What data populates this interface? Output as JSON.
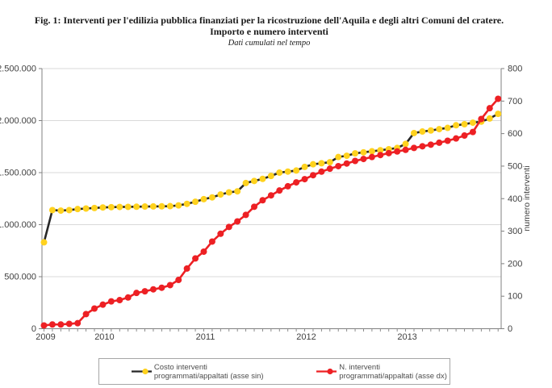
{
  "header": {
    "line1": "Fig. 1: Interventi per l'edilizia pubblica finanziati per la ricostruzione dell'Aquila e degli altri Comuni del cratere.",
    "line2": "Importo e numero interventi",
    "line3": "Dati cumulati nel tempo"
  },
  "colors": {
    "costo_marker": "#FFD21E",
    "costo_line": "#262626",
    "interventi": "#ED2024",
    "grid": "#D9D9D9",
    "axis": "#808080",
    "axis_text": "#404040"
  },
  "chart_data": {
    "type": "line",
    "title": "Fig. 1: Interventi per l'edilizia pubblica finanziati per la ricostruzione dell'Aquila e degli altri Comuni del cratere.",
    "subtitle": "Importo e numero interventi",
    "note": "Dati cumulati nel tempo",
    "grid": true,
    "legend_position": "bottom",
    "x_axis": {
      "n_points": 55,
      "unit": "monthly (mid-2009 to end-2013)",
      "year_labels": [
        {
          "label": "2009",
          "index": 0
        },
        {
          "label": "2010",
          "index": 7
        },
        {
          "label": "2011",
          "index": 19
        },
        {
          "label": "2012",
          "index": 31
        },
        {
          "label": "2013",
          "index": 43
        }
      ]
    },
    "left_axis": {
      "min": 0,
      "max": 2500000,
      "step": 500000,
      "tick_labels": [
        "0",
        "500.000",
        "1.000.000",
        "1.500.000",
        "2.000.000",
        "2.500.000"
      ]
    },
    "right_axis": {
      "min": 0,
      "max": 800,
      "step": 100,
      "title": "numero interventi",
      "tick_labels": [
        "0",
        "100",
        "200",
        "300",
        "400",
        "500",
        "600",
        "700",
        "800"
      ]
    },
    "series": [
      {
        "name": "Costo interventi programmati/appaltati (asse sin)",
        "axis": "left",
        "marker_color": "#FFD21E",
        "line_color": "#262626",
        "values": [
          830000,
          1140000,
          1135000,
          1140000,
          1150000,
          1155000,
          1160000,
          1165000,
          1168000,
          1170000,
          1171000,
          1172000,
          1174000,
          1175000,
          1176000,
          1178000,
          1185000,
          1200000,
          1220000,
          1245000,
          1262000,
          1290000,
          1310000,
          1320000,
          1400000,
          1420000,
          1440000,
          1468000,
          1500000,
          1510000,
          1520000,
          1555000,
          1580000,
          1590000,
          1600000,
          1650000,
          1662000,
          1685000,
          1695000,
          1705000,
          1715000,
          1725000,
          1737000,
          1776000,
          1880000,
          1895000,
          1905000,
          1918000,
          1930000,
          1955000,
          1965000,
          1980000,
          1990000,
          2020000,
          2065000
        ]
      },
      {
        "name": "N. interventi programmati/appaltati (asse dx)",
        "axis": "right",
        "marker_color": "#ED2024",
        "line_color": "#ED2024",
        "values": [
          10,
          13,
          13,
          15,
          17,
          45,
          62,
          74,
          84,
          88,
          96,
          110,
          115,
          121,
          126,
          134,
          150,
          185,
          216,
          237,
          268,
          292,
          313,
          330,
          350,
          375,
          395,
          410,
          425,
          438,
          450,
          460,
          472,
          483,
          492,
          500,
          508,
          516,
          522,
          528,
          534,
          540,
          545,
          550,
          556,
          561,
          566,
          572,
          578,
          585,
          594,
          605,
          645,
          678,
          707
        ]
      }
    ]
  },
  "legend": {
    "item1": "Costo interventi programmati/appaltati (asse sin)",
    "item2": "N. interventi programmati/appaltati (asse dx)"
  }
}
